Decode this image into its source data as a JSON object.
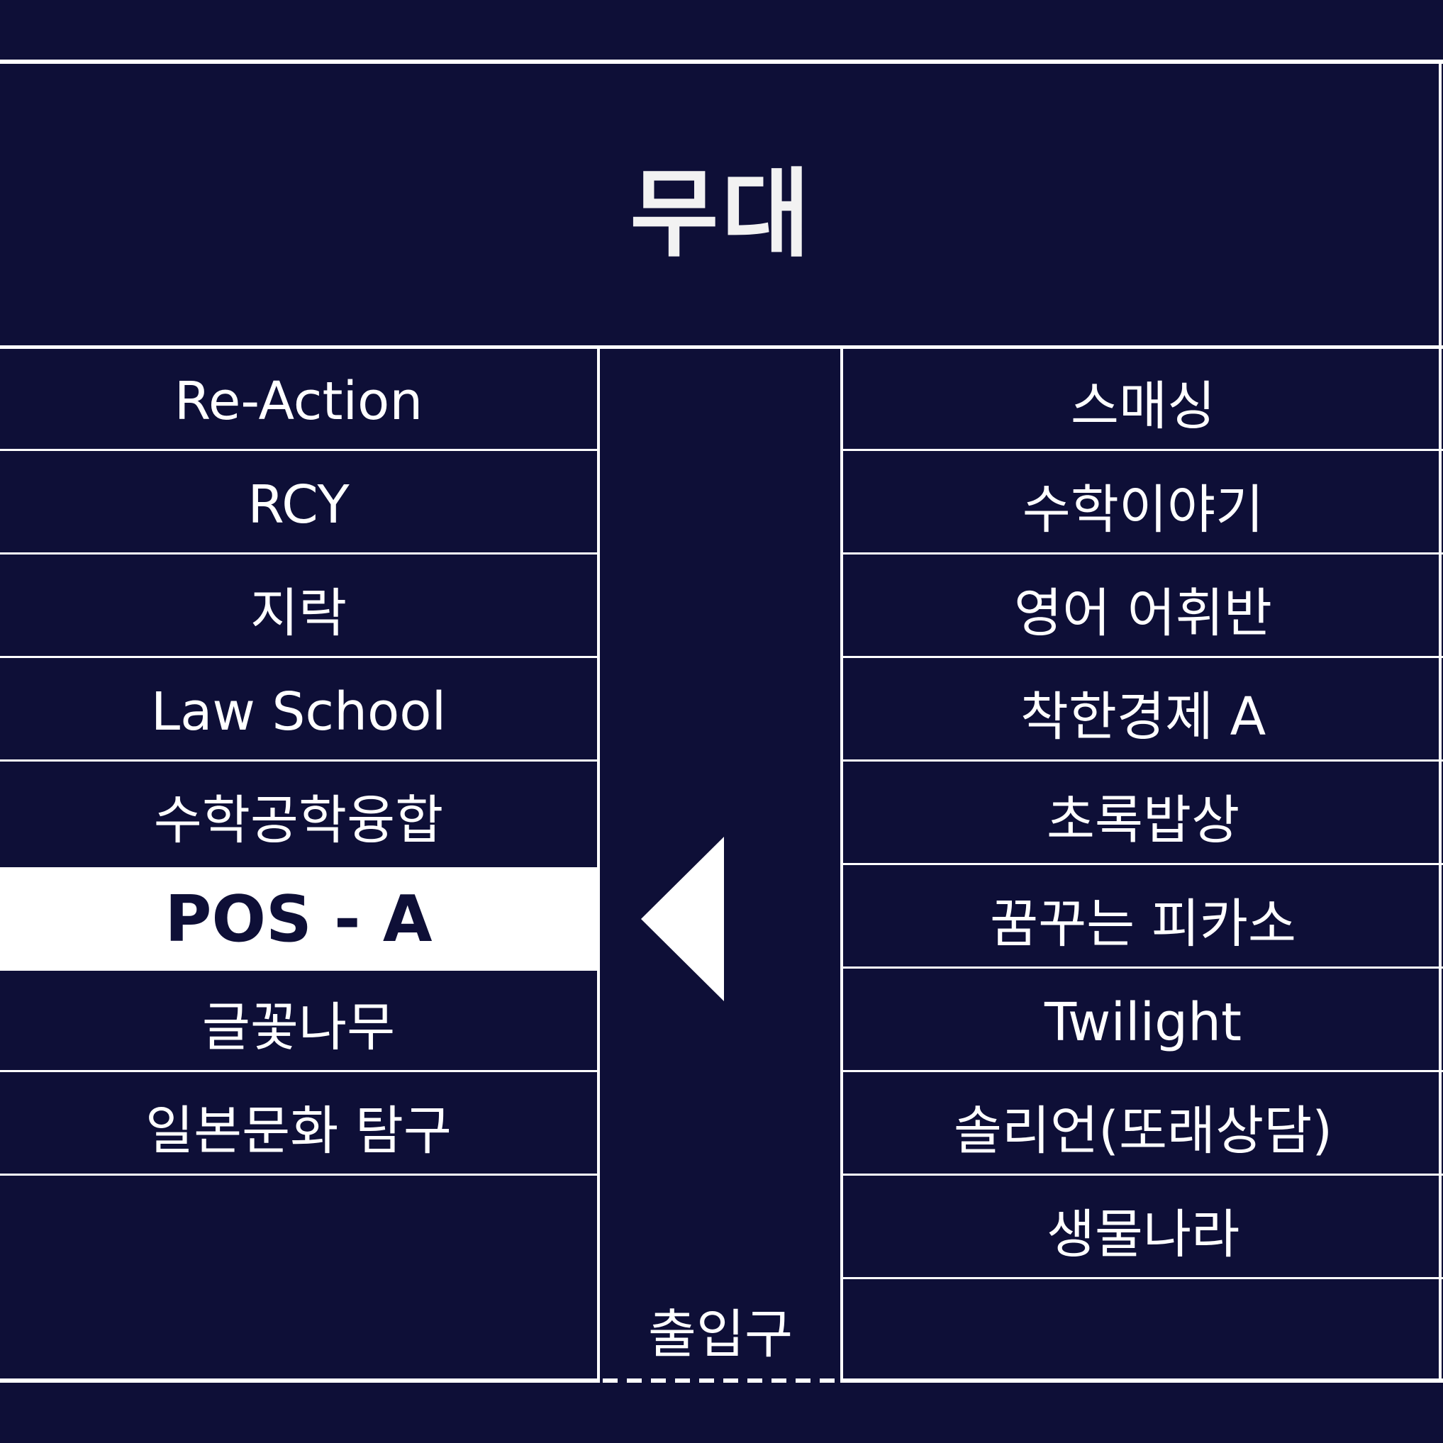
{
  "stage": {
    "label": "무대"
  },
  "left_booths": [
    {
      "name": "Re-Action"
    },
    {
      "name": "RCY"
    },
    {
      "name": "지락"
    },
    {
      "name": "Law School"
    },
    {
      "name": "수학공학융합"
    },
    {
      "name": "POS - A",
      "highlighted": true
    },
    {
      "name": "글꽃나무"
    },
    {
      "name": "일본문화 탐구"
    }
  ],
  "right_booths": [
    {
      "name": "스매싱"
    },
    {
      "name": "수학이야기"
    },
    {
      "name": "영어 어휘반"
    },
    {
      "name": "착한경제 A"
    },
    {
      "name": "초록밥상"
    },
    {
      "name": "꿈꾸는 피카소"
    },
    {
      "name": "Twilight"
    },
    {
      "name": "솔리언(또래상담)"
    },
    {
      "name": "생물나라"
    }
  ],
  "exit": {
    "label": "출입구"
  },
  "colors": {
    "background": "#0e0f37",
    "line": "#ffffff",
    "highlight_bg": "#ffffff",
    "highlight_text": "#0e0f37"
  },
  "icons": {
    "location_marker": "triangle-left-arrow-icon"
  }
}
